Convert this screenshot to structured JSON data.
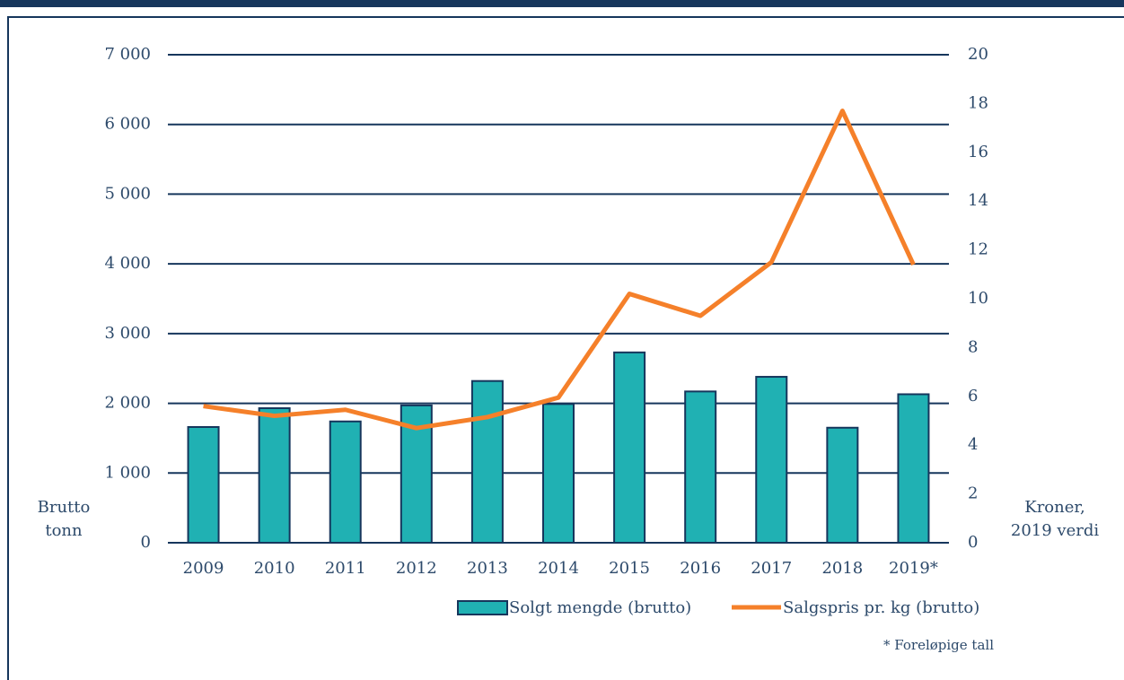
{
  "chart_data": {
    "type": "bar_line",
    "categories": [
      "2009",
      "2010",
      "2011",
      "2012",
      "2013",
      "2014",
      "2015",
      "2016",
      "2017",
      "2018",
      "2019*"
    ],
    "series": [
      {
        "name": "Solgt mengde (brutto)",
        "color": "#20b1b3",
        "type": "bar",
        "values": [
          1660,
          1930,
          1740,
          1970,
          2320,
          1990,
          2730,
          2170,
          2380,
          1650,
          2130
        ]
      },
      {
        "name": "Salgspris pr. kg (brutto)",
        "color": "#f5802a",
        "type": "line",
        "axis": "y2",
        "values": [
          5.6,
          5.2,
          5.45,
          4.7,
          5.15,
          5.95,
          10.2,
          9.3,
          11.5,
          17.7,
          11.4
        ]
      }
    ],
    "ylim": [
      0,
      7000
    ],
    "yticks": [
      0,
      {
        "value": 1000,
        "label": "1 000"
      },
      {
        "value": 2000,
        "label": "2 000"
      },
      {
        "value": 3000,
        "label": "3 000"
      },
      {
        "value": 4000,
        "label": "4 000"
      },
      {
        "value": 5000,
        "label": "5 000"
      },
      {
        "value": 6000,
        "label": "6 000"
      },
      {
        "value": 7000,
        "label": "7 000"
      }
    ],
    "y2lim": [
      0,
      20
    ],
    "y2ticks": [
      0,
      2,
      4,
      6,
      8,
      10,
      12,
      14,
      16,
      18,
      20
    ],
    "ylabel": [
      "Brutto",
      "tonn"
    ],
    "y2label": [
      "Kroner,",
      "2019 verdi"
    ],
    "note": "* Foreløpige tall",
    "grid": true
  }
}
